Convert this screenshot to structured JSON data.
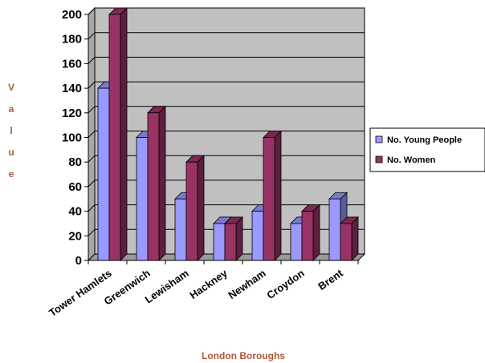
{
  "chart_data": {
    "type": "bar",
    "title": "",
    "xlabel": "London Boroughs",
    "ylabel": "Value",
    "ylim": [
      0,
      200
    ],
    "ytick_step": 20,
    "grid": true,
    "legend_position": "right",
    "categories": [
      "Tower Hamlets",
      "Greenwich",
      "Lewisham",
      "Hackney",
      "Newham",
      "Croydon",
      "Brent"
    ],
    "series": [
      {
        "name": "No. Young People",
        "values": [
          140,
          100,
          50,
          30,
          40,
          30,
          50
        ],
        "color": "#9999ff"
      },
      {
        "name": "No. Women",
        "values": [
          200,
          120,
          80,
          30,
          100,
          40,
          30
        ],
        "color": "#993366"
      }
    ]
  },
  "colors": {
    "plot_background": "#c0c0c0",
    "axis_title": "#b05a3a",
    "grid": "#000000"
  }
}
